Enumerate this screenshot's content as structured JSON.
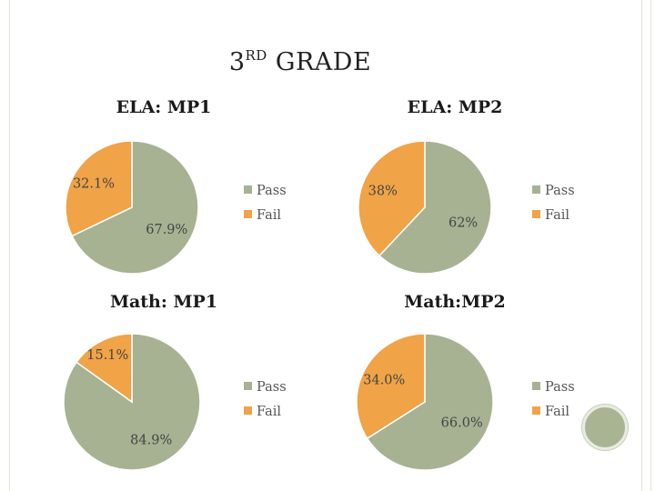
{
  "title": {
    "main": "3",
    "sup": "RD",
    "rest": " GRADE"
  },
  "colors": {
    "pass": "#a6b292",
    "fail": "#f0a347"
  },
  "chart_data": [
    {
      "type": "pie",
      "title": "ELA: MP1",
      "categories": [
        "Pass",
        "Fail"
      ],
      "values": [
        67.9,
        32.1
      ],
      "labels": [
        "67.9%",
        "32.1%"
      ],
      "legend": "right"
    },
    {
      "type": "pie",
      "title": "ELA: MP2",
      "categories": [
        "Pass",
        "Fail"
      ],
      "values": [
        62,
        38
      ],
      "labels": [
        "62%",
        "38%"
      ],
      "legend": "right"
    },
    {
      "type": "pie",
      "title": "Math: MP1",
      "categories": [
        "Pass",
        "Fail"
      ],
      "values": [
        84.9,
        15.1
      ],
      "labels": [
        "84.9%",
        "15.1%"
      ],
      "legend": "right"
    },
    {
      "type": "pie",
      "title": "Math:MP2",
      "categories": [
        "Pass",
        "Fail"
      ],
      "values": [
        66.0,
        34.0
      ],
      "labels": [
        "66.0%",
        "34.0%"
      ],
      "legend": "right"
    }
  ]
}
